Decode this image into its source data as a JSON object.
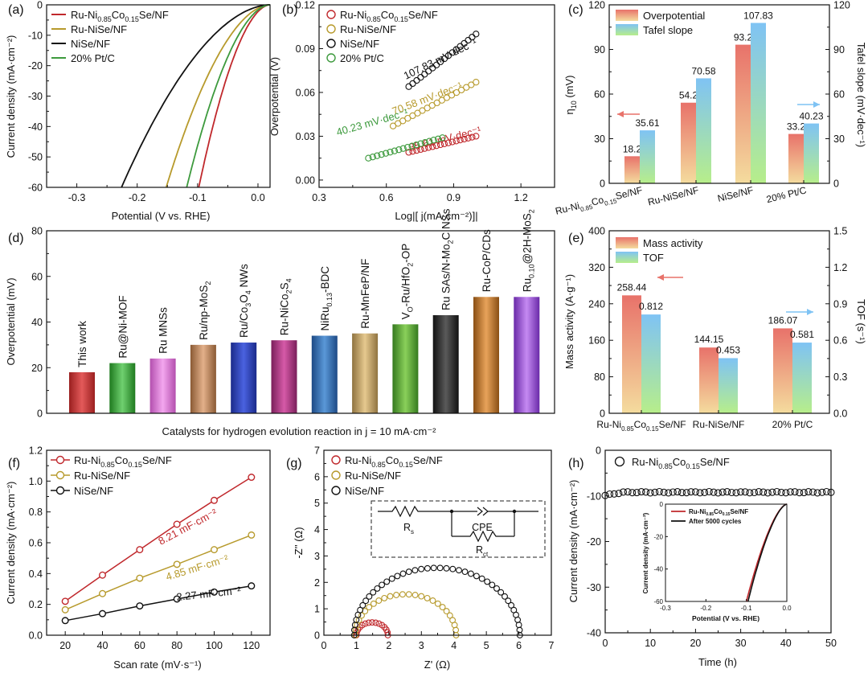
{
  "chart_data": [
    {
      "panel": "(a)",
      "type": "line",
      "xlabel": "Potential (V vs. RHE)",
      "ylabel": "Current density (mA·cm⁻²)",
      "xlim": [
        -0.35,
        0.02
      ],
      "ylim": [
        -60,
        0
      ],
      "xticks": [
        -0.3,
        -0.2,
        -0.1,
        0.0
      ],
      "xticklabels": [
        "-0.3",
        "-0.2",
        "-0.1",
        "0.0"
      ],
      "yticks": [
        0,
        -10,
        -20,
        -30,
        -40,
        -50,
        -60
      ],
      "legend": "top-left",
      "series": [
        {
          "name": "Ru-Ni0.85Co0.15Se/NF",
          "label": [
            "Ru-Ni",
            "0.85",
            "Co",
            "0.15",
            "Se/NF"
          ],
          "color": "#c0282c",
          "onset": -0.098
        },
        {
          "name": "Ru-NiSe/NF",
          "label": [
            "Ru-NiSe/NF"
          ],
          "color": "#b79a2c",
          "onset": -0.152
        },
        {
          "name": "NiSe/NF",
          "label": [
            "NiSe/NF"
          ],
          "color": "#111111",
          "onset": -0.226
        },
        {
          "name": "20% Pt/C",
          "label": [
            "20% Pt/C"
          ],
          "color": "#3d9a3d",
          "onset": -0.118
        }
      ]
    },
    {
      "panel": "(b)",
      "type": "scatter",
      "xlabel": "Log|[ j(mA·cm⁻²)]|",
      "ylabel": "Overpotential (V)",
      "xlim": [
        0.3,
        1.35
      ],
      "ylim": [
        -0.005,
        0.12
      ],
      "xticks": [
        0.3,
        0.6,
        0.9,
        1.2
      ],
      "xticklabels": [
        "0.3",
        "0.6",
        "0.9",
        "1.2"
      ],
      "yticks": [
        0,
        0.03,
        0.06,
        0.09,
        0.12
      ],
      "yticklabels": [
        "0.00",
        "0.03",
        "0.06",
        "0.09",
        "0.12"
      ],
      "legend": "top-left",
      "series": [
        {
          "name": "Ru-Ni0.85Co0.15Se/NF",
          "label": [
            "Ru-Ni",
            "0.85",
            "Co",
            "0.15",
            "Se/NF"
          ],
          "color": "#c0282c",
          "x0": 0.7,
          "x1": 1.0,
          "y0": 0.019,
          "y1": 0.03,
          "slope": "35.61 mV·dec⁻¹"
        },
        {
          "name": "Ru-NiSe/NF",
          "label": [
            "Ru-NiSe/NF"
          ],
          "color": "#b79a2c",
          "x0": 0.63,
          "x1": 1.0,
          "y0": 0.037,
          "y1": 0.067,
          "slope": "70.58 mV·dec⁻¹"
        },
        {
          "name": "NiSe/NF",
          "label": [
            "NiSe/NF"
          ],
          "color": "#111111",
          "x0": 0.7,
          "x1": 1.0,
          "y0": 0.064,
          "y1": 0.1,
          "slope": "107.83 mV·dec⁻¹"
        },
        {
          "name": "20% Pt/C",
          "label": [
            "20% Pt/C"
          ],
          "color": "#3d9a3d",
          "x0": 0.52,
          "x1": 0.85,
          "y0": 0.015,
          "y1": 0.029,
          "slope": "40.23 mV·dec⁻¹"
        }
      ]
    },
    {
      "panel": "(c)",
      "type": "bar",
      "ylabel": "η10 (mV)",
      "ylabel2": "Tafel slope (mV·dec⁻¹)",
      "ylim": [
        0,
        120
      ],
      "ylim2": [
        0,
        120
      ],
      "yticks": [
        0,
        30,
        60,
        90,
        120
      ],
      "categories": [
        "Ru-Ni0.85Co0.15Se/NF",
        "Ru-NiSe/NF",
        "NiSe/NF",
        "20% Pt/C"
      ],
      "category_labels": [
        [
          "Ru-Ni",
          "0.85",
          "Co",
          "0.15",
          "Se/NF"
        ],
        [
          "Ru-NiSe/NF"
        ],
        [
          "NiSe/NF"
        ],
        [
          "20% Pt/C"
        ]
      ],
      "legend": "top-left",
      "series": [
        {
          "name": "Overpotential",
          "values": [
            18.2,
            54.2,
            93.2,
            33.2
          ],
          "labels": [
            "18.2",
            "54.2",
            "93.2",
            "33.2"
          ],
          "colors": [
            "#e8726a",
            "#f4dc9e"
          ]
        },
        {
          "name": "Tafel slope",
          "values": [
            35.61,
            70.58,
            107.83,
            40.23
          ],
          "labels": [
            "35.61",
            "70.58",
            "107.83",
            "40.23"
          ],
          "colors": [
            "#7fc3f4",
            "#b7ee8a"
          ]
        }
      ]
    },
    {
      "panel": "(d)",
      "type": "bar",
      "xlabel": "Catalysts for hydrogen evolution reaction in j = 10 mA·cm⁻²",
      "ylabel": "Overpotential (mV)",
      "ylim": [
        0,
        80
      ],
      "yticks": [
        0,
        20,
        40,
        60,
        80
      ],
      "categories": [
        "This work",
        "Ru@Ni-MOF",
        "Ru MNSs",
        "Ru/np-MoS2",
        "Ru/Co3O4 NWs",
        "Ru-NiCo2S4",
        "NiRu0.13-BDC",
        "Ru-MnFeP/NF",
        "Vo-Ru/HfO2-OP",
        "Ru SAs/N-Mo2C NSs",
        "Ru-CoP/CDs",
        "Ru0.10@2H-MoS2"
      ],
      "category_labels": [
        [
          "This work"
        ],
        [
          "Ru@Ni-MOF"
        ],
        [
          "Ru MNSs"
        ],
        [
          "Ru/np-MoS",
          "2"
        ],
        [
          "Ru/Co",
          "3",
          "O",
          "4",
          " NWs"
        ],
        [
          "Ru-NiCo",
          "2",
          "S",
          "4"
        ],
        [
          "NiRu",
          "0.13",
          "-BDC"
        ],
        [
          "Ru-MnFeP/NF"
        ],
        [
          "V",
          "O",
          "-Ru/HfO",
          "2",
          "-OP"
        ],
        [
          "Ru SAs/N-Mo",
          "2",
          "C NSs"
        ],
        [
          "Ru-CoP/CDs"
        ],
        [
          "Ru",
          "0.10",
          "@2H-MoS",
          "2"
        ]
      ],
      "values": [
        18,
        22,
        24,
        30,
        31,
        32,
        34,
        35,
        39,
        43,
        51,
        51
      ],
      "colors": [
        "#d23a3a",
        "#3fae3f",
        "#e07ad8",
        "#c98a5a",
        "#2a3fc2",
        "#b83a8a",
        "#2f6fb8",
        "#c9a66a",
        "#58a83a",
        "#2d2d2d",
        "#c87a2a",
        "#9a4ad8"
      ]
    },
    {
      "panel": "(e)",
      "type": "bar",
      "ylabel": "Mass activity (A·g⁻¹)",
      "ylabel2": "TOF (s⁻¹)",
      "ylim": [
        0,
        400
      ],
      "ylim2": [
        0,
        1.5
      ],
      "yticks": [
        0,
        80,
        160,
        240,
        320,
        400
      ],
      "yticks2": [
        0.0,
        0.3,
        0.6,
        0.9,
        1.2,
        1.5
      ],
      "categories": [
        "Ru-Ni0.85Co0.15Se/NF",
        "Ru-NiSe/NF",
        "20% Pt/C"
      ],
      "category_labels": [
        [
          "Ru-Ni",
          "0.85",
          "Co",
          "0.15",
          "Se/NF"
        ],
        [
          "Ru-NiSe/NF"
        ],
        [
          "20% Pt/C"
        ]
      ],
      "legend": "top-left",
      "series": [
        {
          "name": "Mass activity",
          "axis": "left",
          "values": [
            258.44,
            144.15,
            186.07
          ],
          "labels": [
            "258.44",
            "144.15",
            "186.07"
          ],
          "colors": [
            "#e8726a",
            "#f4dc9e"
          ]
        },
        {
          "name": "TOF",
          "axis": "right",
          "values": [
            0.812,
            0.453,
            0.581
          ],
          "labels": [
            "0.812",
            "0.453",
            "0.581"
          ],
          "colors": [
            "#7fc3f4",
            "#b7ee8a"
          ]
        }
      ]
    },
    {
      "panel": "(f)",
      "type": "line",
      "xlabel": "Scan rate (mV·s⁻¹)",
      "ylabel": "Current density (mA·cm⁻²)",
      "xlim": [
        10,
        130
      ],
      "ylim": [
        0,
        1.2
      ],
      "xticks": [
        20,
        40,
        60,
        80,
        100,
        120
      ],
      "yticks": [
        0,
        0.2,
        0.4,
        0.6,
        0.8,
        1.0,
        1.2
      ],
      "yticklabels": [
        "0.0",
        "0.2",
        "0.4",
        "0.6",
        "0.8",
        "1.0",
        "1.2"
      ],
      "x": [
        20,
        40,
        60,
        80,
        100,
        120
      ],
      "legend": "top-left",
      "series": [
        {
          "name": "Ru-Ni0.85Co0.15Se/NF",
          "label": [
            "Ru-Ni",
            "0.85",
            "Co",
            "0.15",
            "Se/NF"
          ],
          "color": "#c0282c",
          "values": [
            0.22,
            0.39,
            0.555,
            0.72,
            0.875,
            1.025
          ],
          "annotation": "8.21 mF·cm⁻²"
        },
        {
          "name": "Ru-NiSe/NF",
          "label": [
            "Ru-NiSe/NF"
          ],
          "color": "#b79a2c",
          "values": [
            0.165,
            0.27,
            0.37,
            0.46,
            0.555,
            0.65
          ],
          "annotation": "4.85 mF·cm⁻²"
        },
        {
          "name": "NiSe/NF",
          "label": [
            "NiSe/NF"
          ],
          "color": "#111111",
          "values": [
            0.095,
            0.14,
            0.19,
            0.235,
            0.28,
            0.32
          ],
          "annotation": "2.27 mF·cm⁻²"
        }
      ]
    },
    {
      "panel": "(g)",
      "type": "scatter",
      "xlabel": "Z' (Ω)",
      "ylabel": "-Z'' (Ω)",
      "xlim": [
        0,
        7
      ],
      "ylim": [
        0,
        7
      ],
      "xticks": [
        0,
        1,
        2,
        3,
        4,
        5,
        6,
        7
      ],
      "yticks": [
        0,
        1,
        2,
        3,
        4,
        5,
        6,
        7
      ],
      "legend": "top-left",
      "circuit": {
        "rs": "R",
        "rs_sub": "s",
        "cpe": "CPE",
        "rct": "R",
        "rct_sub": "ct"
      },
      "series": [
        {
          "name": "Ru-Ni0.85Co0.15Se/NF",
          "label": [
            "Ru-Ni",
            "0.85",
            "Co",
            "0.15",
            "Se/NF"
          ],
          "color": "#c0282c",
          "z_start": 1.0,
          "z_end": 1.97
        },
        {
          "name": "Ru-NiSe/NF",
          "label": [
            "Ru-NiSe/NF"
          ],
          "color": "#b79a2c",
          "z_start": 0.97,
          "z_end": 4.07
        },
        {
          "name": "NiSe/NF",
          "label": [
            "NiSe/NF"
          ],
          "color": "#111111",
          "z_start": 0.93,
          "z_end": 6.03
        }
      ]
    },
    {
      "panel": "(h)",
      "type": "scatter",
      "xlabel": "Time (h)",
      "ylabel": "Current density (mA·cm⁻²)",
      "xlim": [
        0,
        50
      ],
      "ylim": [
        -40,
        0
      ],
      "xticks": [
        0,
        10,
        20,
        30,
        40,
        50
      ],
      "yticks": [
        0,
        -10,
        -20,
        -30,
        -40
      ],
      "legend": "top-left",
      "series": [
        {
          "name": "Ru-Ni0.85Co0.15Se/NF",
          "label": [
            "Ru-Ni",
            "0.85",
            "Co",
            "0.15",
            "Se/NF"
          ],
          "color": "#111111",
          "level": -9.2
        }
      ],
      "inset": {
        "xlabel": "Potential (V vs. RHE)",
        "ylabel": "Current density (mA·cm⁻²)",
        "xlim": [
          -0.3,
          0.0
        ],
        "ylim": [
          -60,
          0
        ],
        "xticks": [
          -0.3,
          -0.2,
          -0.1,
          0.0
        ],
        "xticklabels": [
          "-0.3",
          "-0.2",
          "-0.1",
          "0.0"
        ],
        "yticks": [
          0,
          -20,
          -40,
          -60
        ],
        "series": [
          {
            "name": "Ru-Ni0.85Co0.15Se/NF",
            "label": [
              "Ru-Ni",
              "0.85",
              "Co",
              "0.15",
              "Se/NF"
            ],
            "color": "#c0282c",
            "onset": -0.1
          },
          {
            "name": "After 5000 cycles",
            "label": [
              "After 5000 cycles"
            ],
            "color": "#111111",
            "onset": -0.096
          }
        ]
      }
    }
  ]
}
